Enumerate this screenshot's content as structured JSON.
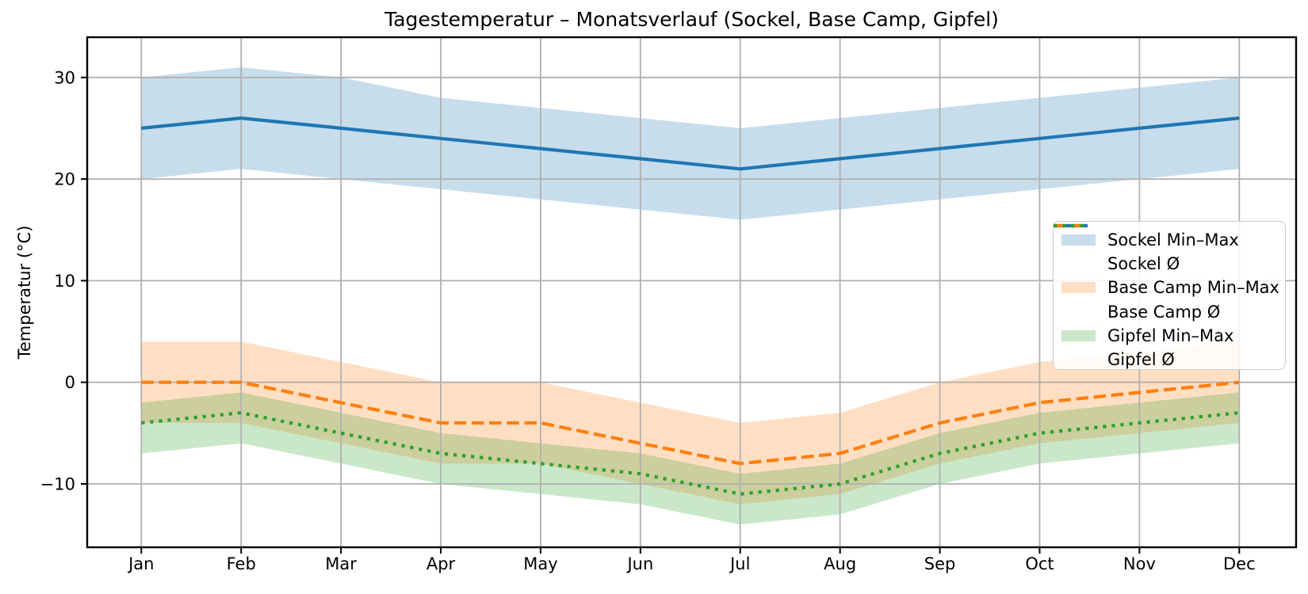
{
  "chart_data": {
    "type": "line",
    "title": "Tagestemperatur – Monatsverlauf (Sockel, Base Camp, Gipfel)",
    "xlabel": "",
    "ylabel": "Temperatur (°C)",
    "categories": [
      "Jan",
      "Feb",
      "Mar",
      "Apr",
      "May",
      "Jun",
      "Jul",
      "Aug",
      "Sep",
      "Oct",
      "Nov",
      "Dec"
    ],
    "yticks": [
      30,
      20,
      10,
      0,
      -10
    ],
    "ytick_labels": [
      "30",
      "20",
      "10",
      "0",
      "−10"
    ],
    "ylim": [
      -16.2,
      34.0
    ],
    "grid": true,
    "legend_position": "center right",
    "grid_color": "#b0b0b0",
    "series": [
      {
        "name": "Sockel",
        "legend_band": "Sockel Min–Max",
        "legend_mean": "Sockel Ø",
        "color": "#1f77b4",
        "band_rgba": "rgba(31,119,180,0.25)",
        "line_style": "solid",
        "mean": [
          25,
          26,
          25,
          24,
          23,
          22,
          21,
          22,
          23,
          24,
          25,
          26
        ],
        "min": [
          20,
          21,
          20,
          19,
          18,
          17,
          16,
          17,
          18,
          19,
          20,
          21
        ],
        "max": [
          30,
          31,
          30,
          28,
          27,
          26,
          25,
          26,
          27,
          28,
          29,
          30
        ]
      },
      {
        "name": "Base Camp",
        "legend_band": "Base Camp Min–Max",
        "legend_mean": "Base Camp Ø",
        "color": "#ff7f0e",
        "band_rgba": "rgba(255,127,14,0.25)",
        "line_style": "dashed",
        "mean": [
          0,
          0,
          -2,
          -4,
          -4,
          -6,
          -8,
          -7,
          -4,
          -2,
          -1,
          0
        ],
        "min": [
          -4,
          -4,
          -6,
          -8,
          -8,
          -10,
          -12,
          -11,
          -8,
          -6,
          -5,
          -4
        ],
        "max": [
          4,
          4,
          2,
          0,
          0,
          -2,
          -4,
          -3,
          0,
          2,
          3,
          4
        ]
      },
      {
        "name": "Gipfel",
        "legend_band": "Gipfel Min–Max",
        "legend_mean": "Gipfel Ø",
        "color": "#2ca02c",
        "band_rgba": "rgba(44,160,44,0.25)",
        "line_style": "dotted",
        "mean": [
          -4,
          -3,
          -5,
          -7,
          -8,
          -9,
          -11,
          -10,
          -7,
          -5,
          -4,
          -3
        ],
        "min": [
          -7,
          -6,
          -8,
          -10,
          -11,
          -12,
          -14,
          -13,
          -10,
          -8,
          -7,
          -6
        ],
        "max": [
          -2,
          -1,
          -3,
          -5,
          -6,
          -7,
          -9,
          -8,
          -5,
          -3,
          -2,
          -1
        ]
      }
    ]
  }
}
